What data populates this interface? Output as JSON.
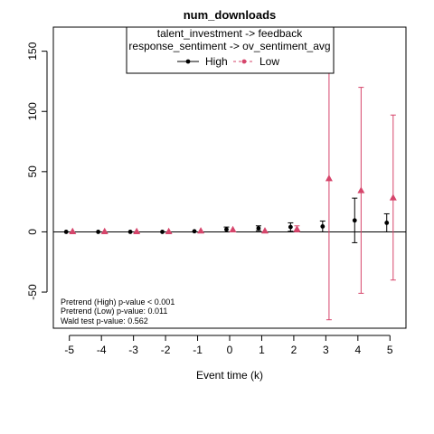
{
  "chart_data": {
    "type": "scatter",
    "title": "num_downloads",
    "xlabel": "Event time (k)",
    "ylabel": "",
    "x_ticks": [
      -5,
      -4,
      -3,
      -2,
      -1,
      0,
      1,
      2,
      3,
      4,
      5
    ],
    "y_ticks": [
      -50,
      0,
      50,
      100,
      150
    ],
    "xlim": [
      -5.5,
      5.5
    ],
    "ylim": [
      -80,
      170
    ],
    "zero_line": true,
    "legend": {
      "placement": "top",
      "header_lines": [
        "talent_investment -> feedback",
        "response_sentiment -> ov_sentiment_avg"
      ],
      "entries": [
        "High",
        "Low"
      ]
    },
    "series": [
      {
        "name": "High",
        "color": "#000000",
        "marker": "circle",
        "x": [
          -5,
          -4,
          -3,
          -2,
          -1,
          0,
          1,
          2,
          3,
          4,
          5
        ],
        "y": [
          0,
          0,
          0,
          0,
          0.5,
          2,
          3,
          4,
          4.5,
          9.5,
          7.5
        ],
        "ci_low": [
          null,
          null,
          null,
          null,
          null,
          0,
          1,
          0.5,
          0,
          -9,
          0
        ],
        "ci_high": [
          null,
          null,
          null,
          null,
          null,
          4,
          5,
          7.5,
          9,
          28,
          15
        ]
      },
      {
        "name": "Low",
        "color": "#d6456b",
        "marker": "triangle",
        "x": [
          -5,
          -4,
          -3,
          -2,
          -1,
          0,
          1,
          2,
          3,
          4,
          5
        ],
        "y": [
          0.5,
          0.5,
          0.5,
          0.5,
          1,
          2,
          1,
          2.5,
          44.5,
          34.5,
          28.5
        ],
        "ci_low": [
          null,
          null,
          null,
          null,
          null,
          null,
          null,
          0,
          -73,
          -51,
          -40
        ],
        "ci_high": [
          null,
          null,
          null,
          null,
          null,
          null,
          null,
          5,
          166,
          120,
          97
        ]
      }
    ],
    "annotations": [
      "Pretrend (High) p-value < 0.001",
      "Pretrend (Low) p-value: 0.011",
      "Wald test p-value: 0.562"
    ]
  }
}
